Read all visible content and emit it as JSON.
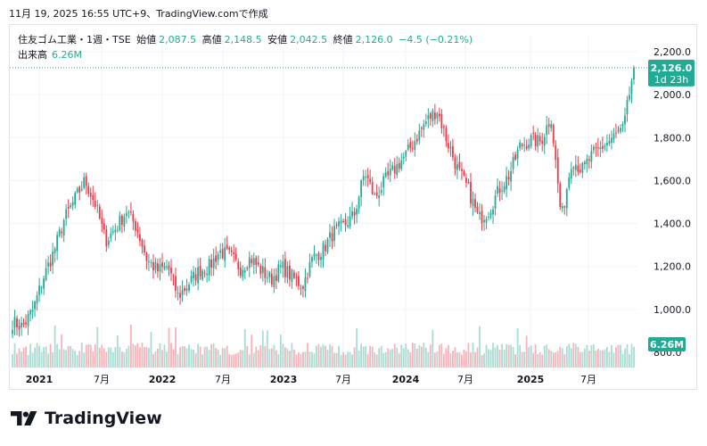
{
  "snapshot_text": "11月 19, 2025 16:55 UTC+9、TradingView.comで作成",
  "legend": {
    "symbol": "住友ゴム工業・1週・TSE",
    "open_label": "始値",
    "open": "2,087.5",
    "high_label": "高値",
    "high": "2,148.5",
    "low_label": "安値",
    "low": "2,042.5",
    "close_label": "終値",
    "close": "2,126.0",
    "change": "−4.5 (−0.21%)",
    "volume_label": "出来高",
    "volume": "6.26M"
  },
  "price_tag": {
    "value": "2,126.0",
    "countdown": "1d 23h"
  },
  "volume_tag": "6.26M",
  "logo_text": "TradingView",
  "colors": {
    "up": "#22ab94",
    "down": "#f23645",
    "up_vol": "#a8ddd3",
    "down_vol": "#f8b2b8",
    "grid": "#f0f3fa",
    "text": "#131722"
  },
  "chart_data": {
    "type": "candlestick",
    "interval": "1週",
    "y_ticks": [
      "2,200.0",
      "2,000.0",
      "1,800.0",
      "1,600.0",
      "1,400.0",
      "1,200.0",
      "1,000.0",
      "800.0"
    ],
    "ylim": [
      800,
      2200
    ],
    "x_ticks": [
      "2021",
      "7月",
      "2022",
      "7月",
      "2023",
      "7月",
      "2024",
      "7月",
      "2025",
      "7月"
    ],
    "last_close": 2126.0,
    "last_volume_millions": 6.26,
    "close_series": [
      {
        "date": "2020-11",
        "close": 940
      },
      {
        "date": "2020-12",
        "close": 920
      },
      {
        "date": "2021-01",
        "close": 1000
      },
      {
        "date": "2021-02",
        "close": 1150
      },
      {
        "date": "2021-03",
        "close": 1270
      },
      {
        "date": "2021-04",
        "close": 1420
      },
      {
        "date": "2021-05",
        "close": 1510
      },
      {
        "date": "2021-06",
        "close": 1600
      },
      {
        "date": "2021-07",
        "close": 1490
      },
      {
        "date": "2021-08",
        "close": 1320
      },
      {
        "date": "2021-09",
        "close": 1380
      },
      {
        "date": "2021-10",
        "close": 1460
      },
      {
        "date": "2021-11",
        "close": 1380
      },
      {
        "date": "2021-12",
        "close": 1230
      },
      {
        "date": "2022-01",
        "close": 1180
      },
      {
        "date": "2022-02",
        "close": 1200
      },
      {
        "date": "2022-03",
        "close": 1060
      },
      {
        "date": "2022-04",
        "close": 1120
      },
      {
        "date": "2022-05",
        "close": 1180
      },
      {
        "date": "2022-06",
        "close": 1200
      },
      {
        "date": "2022-07",
        "close": 1270
      },
      {
        "date": "2022-08",
        "close": 1250
      },
      {
        "date": "2022-09",
        "close": 1190
      },
      {
        "date": "2022-10",
        "close": 1240
      },
      {
        "date": "2022-11",
        "close": 1180
      },
      {
        "date": "2022-12",
        "close": 1140
      },
      {
        "date": "2023-01",
        "close": 1200
      },
      {
        "date": "2023-02",
        "close": 1150
      },
      {
        "date": "2023-03",
        "close": 1110
      },
      {
        "date": "2023-04",
        "close": 1240
      },
      {
        "date": "2023-05",
        "close": 1280
      },
      {
        "date": "2023-06",
        "close": 1360
      },
      {
        "date": "2023-07",
        "close": 1390
      },
      {
        "date": "2023-08",
        "close": 1440
      },
      {
        "date": "2023-09",
        "close": 1640
      },
      {
        "date": "2023-10",
        "close": 1520
      },
      {
        "date": "2023-11",
        "close": 1600
      },
      {
        "date": "2023-12",
        "close": 1660
      },
      {
        "date": "2024-01",
        "close": 1720
      },
      {
        "date": "2024-02",
        "close": 1800
      },
      {
        "date": "2024-03",
        "close": 1880
      },
      {
        "date": "2024-04",
        "close": 1930
      },
      {
        "date": "2024-05",
        "close": 1780
      },
      {
        "date": "2024-06",
        "close": 1650
      },
      {
        "date": "2024-07",
        "close": 1560
      },
      {
        "date": "2024-08",
        "close": 1420
      },
      {
        "date": "2024-09",
        "close": 1460
      },
      {
        "date": "2024-10",
        "close": 1560
      },
      {
        "date": "2024-11",
        "close": 1630
      },
      {
        "date": "2024-12",
        "close": 1760
      },
      {
        "date": "2025-01",
        "close": 1790
      },
      {
        "date": "2025-02",
        "close": 1780
      },
      {
        "date": "2025-03",
        "close": 1900
      },
      {
        "date": "2025-04",
        "close": 1420
      },
      {
        "date": "2025-05",
        "close": 1700
      },
      {
        "date": "2025-06",
        "close": 1650
      },
      {
        "date": "2025-07",
        "close": 1720
      },
      {
        "date": "2025-08",
        "close": 1760
      },
      {
        "date": "2025-09",
        "close": 1800
      },
      {
        "date": "2025-10",
        "close": 1840
      },
      {
        "date": "2025-11",
        "close": 2126
      }
    ]
  }
}
